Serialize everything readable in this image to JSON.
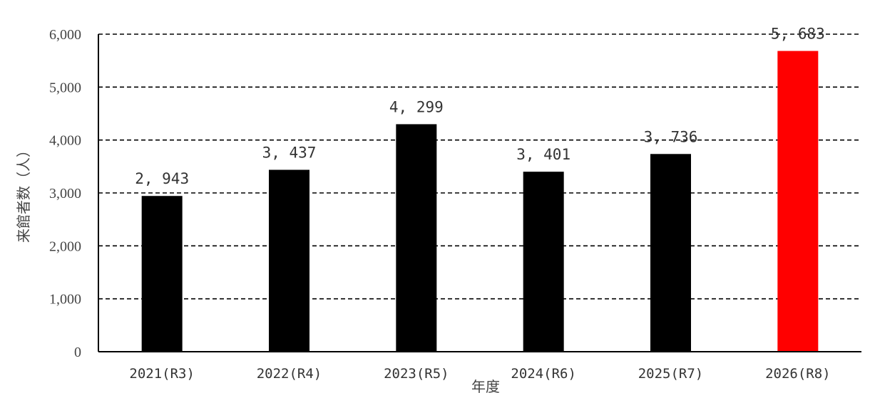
{
  "chart_data": {
    "type": "bar",
    "categories": [
      "2021(R3)",
      "2022(R4)",
      "2023(R5)",
      "2024(R6)",
      "2025(R7)",
      "2026(R8)"
    ],
    "values": [
      2943,
      3437,
      4299,
      3401,
      3736,
      5683
    ],
    "data_labels": [
      "2, 943",
      "3, 437",
      "4, 299",
      "3, 401",
      "3, 736",
      "5, 683"
    ],
    "bar_colors": [
      "#000000",
      "#000000",
      "#000000",
      "#000000",
      "#000000",
      "#ff0000"
    ],
    "xlabel": "年度",
    "ylabel": "来館者数（人）",
    "ylim": [
      0,
      6000
    ],
    "yticks": [
      0,
      1000,
      2000,
      3000,
      4000,
      5000,
      6000
    ],
    "ytick_labels": [
      "0",
      "1,000",
      "2,000",
      "3,000",
      "4,000",
      "5,000",
      "6,000"
    ],
    "grid": "dashed-horizontal",
    "legend": "none"
  }
}
